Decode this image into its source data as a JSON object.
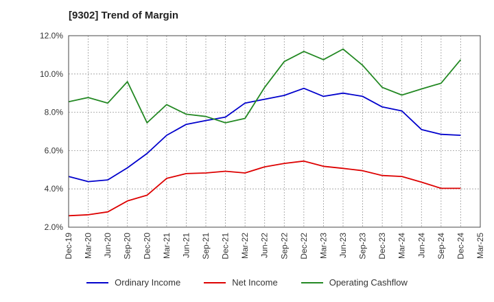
{
  "title": "[9302]  Trend of Margin",
  "chart_data": {
    "type": "line",
    "title": "[9302]  Trend of Margin",
    "xlabel": "",
    "ylabel": "",
    "x": [
      "Dec-19",
      "Mar-20",
      "Jun-20",
      "Sep-20",
      "Dec-20",
      "Mar-21",
      "Jun-21",
      "Sep-21",
      "Dec-21",
      "Mar-22",
      "Jun-22",
      "Sep-22",
      "Dec-22",
      "Mar-23",
      "Jun-23",
      "Sep-23",
      "Dec-23",
      "Mar-24",
      "Jun-24",
      "Sep-24",
      "Dec-24",
      "Mar-25"
    ],
    "ylim": [
      2.0,
      12.0
    ],
    "yticks": [
      "2.0%",
      "4.0%",
      "6.0%",
      "8.0%",
      "10.0%",
      "12.0%"
    ],
    "grid": true,
    "legend_position": "bottom",
    "series": [
      {
        "name": "Ordinary Income",
        "color": "#0000cc",
        "values": [
          4.65,
          4.38,
          4.47,
          5.1,
          5.85,
          6.8,
          7.37,
          7.57,
          7.75,
          8.48,
          8.68,
          8.88,
          9.25,
          8.83,
          9.0,
          8.83,
          8.28,
          8.07,
          7.1,
          6.85,
          6.8,
          null
        ]
      },
      {
        "name": "Net Income",
        "color": "#dd0000",
        "values": [
          2.6,
          2.65,
          2.8,
          3.37,
          3.67,
          4.55,
          4.8,
          4.83,
          4.92,
          4.83,
          5.15,
          5.33,
          5.45,
          5.18,
          5.07,
          4.95,
          4.7,
          4.65,
          4.35,
          4.03,
          4.03,
          null
        ]
      },
      {
        "name": "Operating Cashflow",
        "color": "#228822",
        "values": [
          8.55,
          8.77,
          8.48,
          9.6,
          7.45,
          8.4,
          7.9,
          7.78,
          7.45,
          7.68,
          9.3,
          10.65,
          11.18,
          10.75,
          11.3,
          10.45,
          9.3,
          8.9,
          9.22,
          9.52,
          10.75,
          null
        ]
      }
    ]
  }
}
